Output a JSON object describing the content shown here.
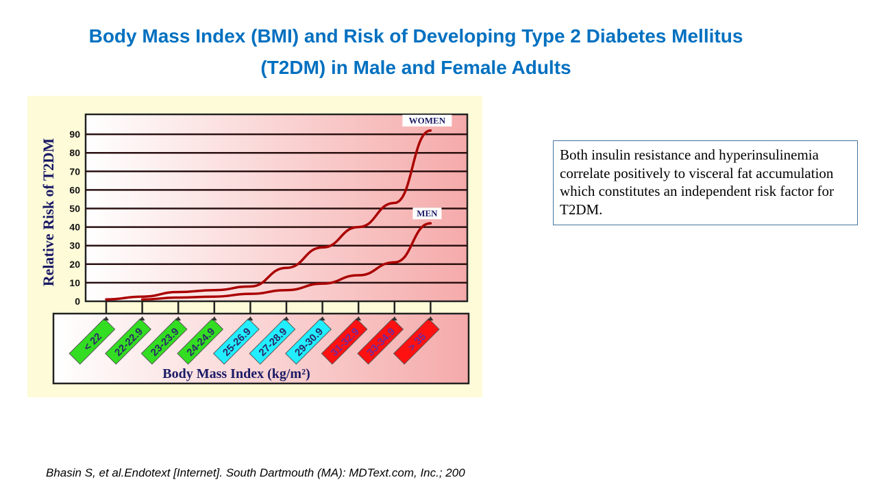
{
  "slide": {
    "title_line1": "Body Mass Index (BMI) and Risk of Developing Type 2 Diabetes Mellitus",
    "title_line2": "(T2DM) in Male and Female Adults",
    "note": "Both insulin resistance and hyperinsulinemia correlate positively to visceral fat accumulation which constitutes an independent risk factor for T2DM.",
    "citation": "Bhasin S, et al.Endotext [Internet]. South Dartmouth (MA): MDText.com, Inc.; 200",
    "title_color": "#0070C0"
  },
  "chart_data": {
    "type": "line",
    "xlabel": "Body Mass Index (kg/m²)",
    "ylabel": "Relative Risk of T2DM",
    "categories": [
      "< 22",
      "22-22.9",
      "23-23.9",
      "24-24.9",
      "25-26.9",
      "27-28.9",
      "29-30.9",
      "31-32.9",
      "33-34.9",
      "> 35"
    ],
    "category_colors": [
      "#33dd22",
      "#33dd22",
      "#33dd22",
      "#33dd22",
      "#22eeff",
      "#22eeff",
      "#22eeff",
      "#ff1111",
      "#ff1111",
      "#ff1111"
    ],
    "yticks": [
      0,
      10,
      20,
      30,
      40,
      50,
      60,
      70,
      80,
      90
    ],
    "ylim": [
      0,
      100
    ],
    "grid": true,
    "series": [
      {
        "name": "WOMEN",
        "values": [
          1,
          2.5,
          5,
          6,
          8,
          18,
          29,
          40,
          53,
          92
        ]
      },
      {
        "name": "MEN",
        "values": [
          null,
          1,
          2,
          2.5,
          4,
          6,
          9.5,
          14,
          21,
          42
        ]
      }
    ],
    "line_color": "#aa0000"
  }
}
